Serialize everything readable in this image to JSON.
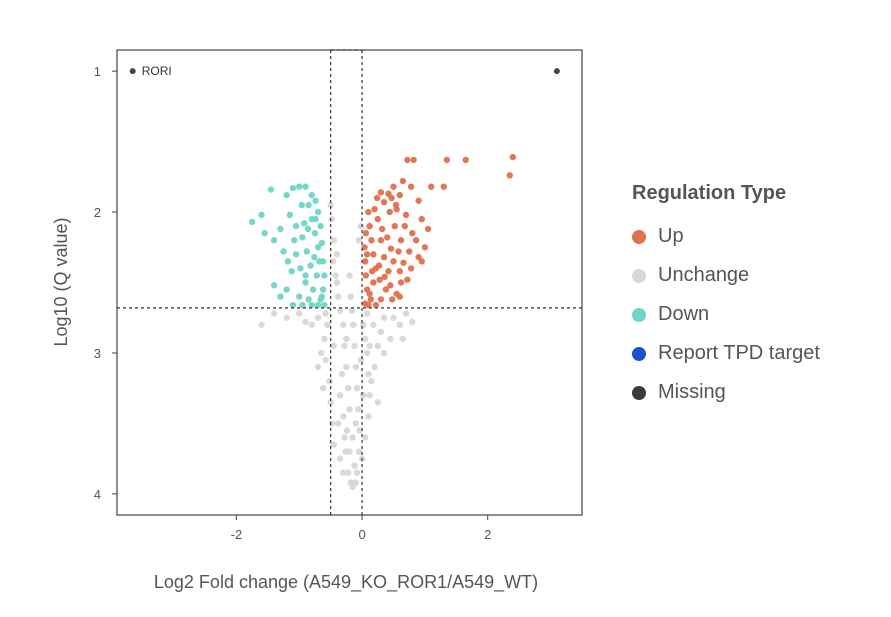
{
  "chart_data": {
    "type": "scatter",
    "title": "",
    "xlabel": "Log2 Fold change (A549_KO_ROR1/A549_WT)",
    "ylabel": "Log10 (Q value)",
    "xlim": [
      -3.9,
      3.5
    ],
    "ylim": [
      0.85,
      4.15
    ],
    "y_inverted": true,
    "x_ticks": [
      -2,
      0,
      2
    ],
    "x_tick_labels": [
      "-2",
      "0",
      "2"
    ],
    "y_ticks": [
      1,
      2,
      3,
      4
    ],
    "y_tick_labels": [
      "1",
      "2",
      "3",
      "4"
    ],
    "thresholds": {
      "fc_lines": [
        -0.5,
        0
      ],
      "fc_box_top": 0.85,
      "q_line": 2.68
    },
    "legend": {
      "title": "Regulation Type",
      "position": "right",
      "entries": [
        {
          "name": "Up",
          "color": "#e0704f"
        },
        {
          "name": "Unchange",
          "color": "#d9d6d4"
        },
        {
          "name": "Down",
          "color": "#6fd4c9"
        },
        {
          "name": "Report TPD target",
          "color": "#1a4fcf"
        },
        {
          "name": "Missing",
          "color": "#3a3a3a"
        }
      ]
    },
    "annotations": [
      {
        "text": "RORI",
        "x": -3.65,
        "y": 1.0
      }
    ],
    "series": [
      {
        "name": "Missing",
        "color": "#3a3a3a",
        "points": [
          [
            -3.65,
            1.0
          ],
          [
            3.1,
            1.0
          ]
        ]
      },
      {
        "name": "Up",
        "color": "#e0704f",
        "points": [
          [
            0.72,
            1.63
          ],
          [
            0.82,
            1.63
          ],
          [
            1.35,
            1.63
          ],
          [
            1.65,
            1.63
          ],
          [
            2.4,
            1.61
          ],
          [
            2.35,
            1.74
          ],
          [
            0.65,
            1.78
          ],
          [
            0.78,
            1.82
          ],
          [
            1.1,
            1.82
          ],
          [
            1.3,
            1.82
          ],
          [
            0.5,
            1.82
          ],
          [
            0.6,
            1.88
          ],
          [
            0.9,
            1.92
          ],
          [
            0.42,
            1.87
          ],
          [
            0.35,
            1.93
          ],
          [
            0.55,
            1.98
          ],
          [
            0.7,
            2.02
          ],
          [
            0.95,
            2.05
          ],
          [
            1.05,
            2.12
          ],
          [
            0.8,
            2.15
          ],
          [
            0.62,
            2.2
          ],
          [
            0.75,
            2.28
          ],
          [
            0.9,
            2.32
          ],
          [
            1.0,
            2.25
          ],
          [
            0.5,
            2.35
          ],
          [
            0.6,
            2.42
          ],
          [
            0.72,
            2.48
          ],
          [
            0.95,
            2.35
          ],
          [
            0.45,
            2.52
          ],
          [
            0.55,
            2.58
          ],
          [
            0.3,
            2.62
          ],
          [
            0.38,
            2.55
          ],
          [
            0.28,
            2.48
          ],
          [
            0.22,
            2.4
          ],
          [
            0.18,
            2.3
          ],
          [
            0.15,
            2.2
          ],
          [
            0.12,
            2.1
          ],
          [
            0.1,
            2.0
          ],
          [
            0.14,
            2.62
          ],
          [
            0.08,
            2.55
          ],
          [
            0.06,
            2.45
          ],
          [
            0.05,
            2.35
          ],
          [
            0.04,
            2.25
          ],
          [
            0.06,
            2.15
          ],
          [
            0.2,
            1.98
          ],
          [
            0.25,
            2.05
          ],
          [
            0.32,
            2.12
          ],
          [
            0.4,
            2.18
          ],
          [
            0.46,
            2.26
          ],
          [
            0.35,
            2.32
          ],
          [
            0.27,
            2.38
          ],
          [
            0.18,
            2.5
          ],
          [
            0.12,
            2.58
          ],
          [
            0.42,
            2.42
          ],
          [
            0.52,
            2.1
          ],
          [
            0.58,
            2.28
          ],
          [
            0.66,
            2.36
          ],
          [
            0.48,
            2.62
          ],
          [
            0.22,
            2.66
          ],
          [
            0.1,
            2.66
          ],
          [
            0.05,
            2.65
          ],
          [
            0.3,
            2.2
          ],
          [
            0.24,
            1.9
          ],
          [
            0.44,
            2.0
          ],
          [
            0.36,
            2.46
          ],
          [
            0.16,
            2.42
          ],
          [
            0.08,
            2.3
          ],
          [
            0.62,
            2.5
          ],
          [
            0.78,
            2.4
          ],
          [
            0.86,
            2.2
          ],
          [
            0.68,
            2.1
          ],
          [
            0.54,
            1.95
          ],
          [
            0.3,
            1.86
          ],
          [
            0.47,
            1.9
          ],
          [
            0.6,
            2.6
          ]
        ]
      },
      {
        "name": "Down",
        "color": "#6fd4c9",
        "points": [
          [
            -1.45,
            1.84
          ],
          [
            -1.2,
            1.88
          ],
          [
            -1.1,
            1.83
          ],
          [
            -1.0,
            1.82
          ],
          [
            -0.9,
            1.82
          ],
          [
            -1.6,
            2.02
          ],
          [
            -1.75,
            2.07
          ],
          [
            -1.55,
            2.15
          ],
          [
            -1.4,
            2.2
          ],
          [
            -1.25,
            2.28
          ],
          [
            -1.3,
            2.12
          ],
          [
            -1.15,
            2.02
          ],
          [
            -1.05,
            2.1
          ],
          [
            -0.95,
            2.18
          ],
          [
            -0.85,
            1.95
          ],
          [
            -0.8,
            2.05
          ],
          [
            -0.75,
            2.15
          ],
          [
            -0.7,
            2.25
          ],
          [
            -0.68,
            2.35
          ],
          [
            -0.72,
            2.45
          ],
          [
            -0.78,
            2.55
          ],
          [
            -0.85,
            2.62
          ],
          [
            -0.9,
            2.5
          ],
          [
            -0.98,
            2.4
          ],
          [
            -1.05,
            2.3
          ],
          [
            -1.12,
            2.42
          ],
          [
            -1.2,
            2.55
          ],
          [
            -1.3,
            2.6
          ],
          [
            -1.4,
            2.52
          ],
          [
            -0.66,
            2.62
          ],
          [
            -0.62,
            2.55
          ],
          [
            -0.6,
            2.45
          ],
          [
            -0.62,
            2.35
          ],
          [
            -0.64,
            2.22
          ],
          [
            -0.66,
            2.1
          ],
          [
            -0.7,
            2.0
          ],
          [
            -0.74,
            1.92
          ],
          [
            -0.8,
            1.88
          ],
          [
            -0.88,
            2.28
          ],
          [
            -0.92,
            2.08
          ],
          [
            -1.0,
            2.6
          ],
          [
            -1.1,
            2.66
          ],
          [
            -0.95,
            2.66
          ],
          [
            -0.8,
            2.66
          ],
          [
            -0.7,
            2.66
          ],
          [
            -0.6,
            2.66
          ],
          [
            -0.82,
            2.38
          ],
          [
            -0.76,
            2.32
          ],
          [
            -0.96,
            1.95
          ],
          [
            -1.08,
            2.2
          ],
          [
            -1.18,
            2.35
          ],
          [
            -0.86,
            2.12
          ],
          [
            -0.64,
            2.6
          ],
          [
            -0.74,
            2.05
          ],
          [
            -0.9,
            2.45
          ]
        ]
      },
      {
        "name": "Unchange",
        "color": "#d9d6d4",
        "points": [
          [
            -0.45,
            2.2
          ],
          [
            -0.4,
            2.3
          ],
          [
            -0.42,
            2.45
          ],
          [
            -0.38,
            2.6
          ],
          [
            -0.35,
            2.7
          ],
          [
            -0.3,
            2.8
          ],
          [
            -0.28,
            2.95
          ],
          [
            -0.25,
            3.1
          ],
          [
            -0.22,
            3.25
          ],
          [
            -0.2,
            3.4
          ],
          [
            -0.24,
            3.55
          ],
          [
            -0.26,
            3.7
          ],
          [
            -0.22,
            3.85
          ],
          [
            -0.18,
            3.92
          ],
          [
            -0.15,
            3.95
          ],
          [
            -0.1,
            3.92
          ],
          [
            -0.08,
            3.85
          ],
          [
            -0.05,
            3.7
          ],
          [
            -0.04,
            3.55
          ],
          [
            -0.06,
            3.4
          ],
          [
            -0.08,
            3.25
          ],
          [
            -0.1,
            3.1
          ],
          [
            -0.12,
            2.95
          ],
          [
            -0.14,
            2.8
          ],
          [
            -0.16,
            2.7
          ],
          [
            -0.18,
            2.6
          ],
          [
            -0.2,
            2.45
          ],
          [
            -0.05,
            2.2
          ],
          [
            -0.02,
            2.1
          ],
          [
            -0.48,
            2.05
          ],
          [
            -0.5,
            1.95
          ],
          [
            -0.46,
            2.35
          ],
          [
            -0.4,
            2.5
          ],
          [
            0.02,
            2.8
          ],
          [
            0.05,
            2.9
          ],
          [
            0.08,
            3.0
          ],
          [
            0.1,
            3.15
          ],
          [
            0.12,
            3.3
          ],
          [
            0.1,
            3.45
          ],
          [
            0.05,
            3.6
          ],
          [
            -0.55,
            2.8
          ],
          [
            -0.6,
            2.9
          ],
          [
            -0.58,
            3.05
          ],
          [
            -0.52,
            3.2
          ],
          [
            -0.5,
            3.35
          ],
          [
            -0.48,
            3.5
          ],
          [
            -0.45,
            3.65
          ],
          [
            -0.35,
            3.75
          ],
          [
            -0.3,
            3.85
          ],
          [
            0.15,
            3.2
          ],
          [
            0.2,
            3.1
          ],
          [
            0.25,
            2.95
          ],
          [
            0.3,
            2.85
          ],
          [
            0.35,
            2.75
          ],
          [
            -0.7,
            2.75
          ],
          [
            -0.8,
            2.8
          ],
          [
            -0.9,
            2.78
          ],
          [
            -1.0,
            2.72
          ],
          [
            -1.2,
            2.75
          ],
          [
            -1.4,
            2.72
          ],
          [
            -1.6,
            2.8
          ],
          [
            0.5,
            2.75
          ],
          [
            0.6,
            2.8
          ],
          [
            0.7,
            2.72
          ],
          [
            0.8,
            2.78
          ],
          [
            0.65,
            2.9
          ],
          [
            0.45,
            2.9
          ],
          [
            0.35,
            3.0
          ],
          [
            -0.65,
            3.0
          ],
          [
            -0.7,
            3.1
          ],
          [
            -0.35,
            3.3
          ],
          [
            -0.3,
            3.45
          ],
          [
            -0.15,
            3.6
          ],
          [
            0.0,
            3.75
          ],
          [
            0.02,
            3.3
          ],
          [
            -0.02,
            3.05
          ],
          [
            -0.28,
            3.6
          ],
          [
            -0.12,
            3.8
          ],
          [
            -0.32,
            3.15
          ],
          [
            0.18,
            2.8
          ],
          [
            -0.58,
            2.72
          ],
          [
            -0.45,
            2.95
          ],
          [
            0.08,
            2.72
          ],
          [
            -0.62,
            3.25
          ],
          [
            0.25,
            3.35
          ],
          [
            -0.38,
            3.5
          ],
          [
            -0.2,
            3.7
          ],
          [
            0.12,
            2.95
          ],
          [
            -0.1,
            3.5
          ],
          [
            -0.25,
            2.9
          ]
        ]
      },
      {
        "name": "Report TPD target",
        "color": "#1a4fcf",
        "points": []
      }
    ]
  }
}
